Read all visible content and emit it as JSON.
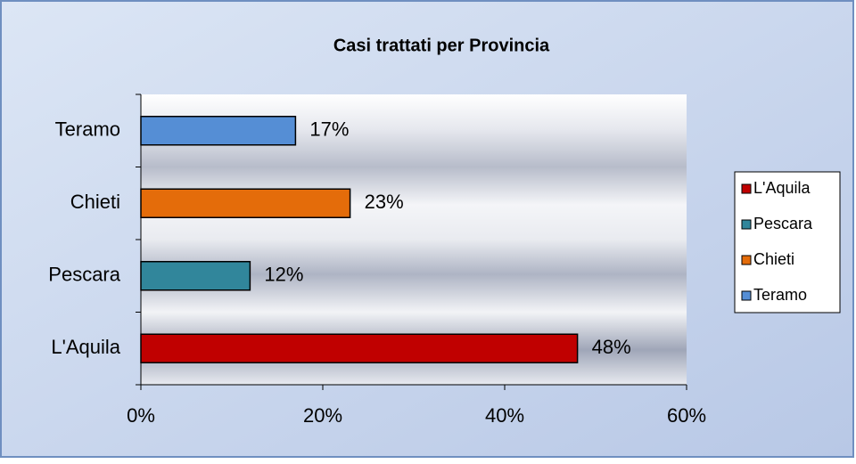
{
  "chart_data": {
    "type": "bar",
    "orientation": "horizontal",
    "title": "Casi trattati per Provincia",
    "categories": [
      "L'Aquila",
      "Pescara",
      "Chieti",
      "Teramo"
    ],
    "values": [
      48,
      12,
      23,
      17
    ],
    "value_labels": [
      "48%",
      "12%",
      "23%",
      "17%"
    ],
    "colors": [
      "#c00000",
      "#31869b",
      "#e46c0a",
      "#558ed5"
    ],
    "xlim": [
      0,
      60
    ],
    "xticks": [
      {
        "value": 0,
        "label": "0%"
      },
      {
        "value": 20,
        "label": "20%"
      },
      {
        "value": 40,
        "label": "40%"
      },
      {
        "value": 60,
        "label": "60%"
      }
    ],
    "legend": "right"
  }
}
